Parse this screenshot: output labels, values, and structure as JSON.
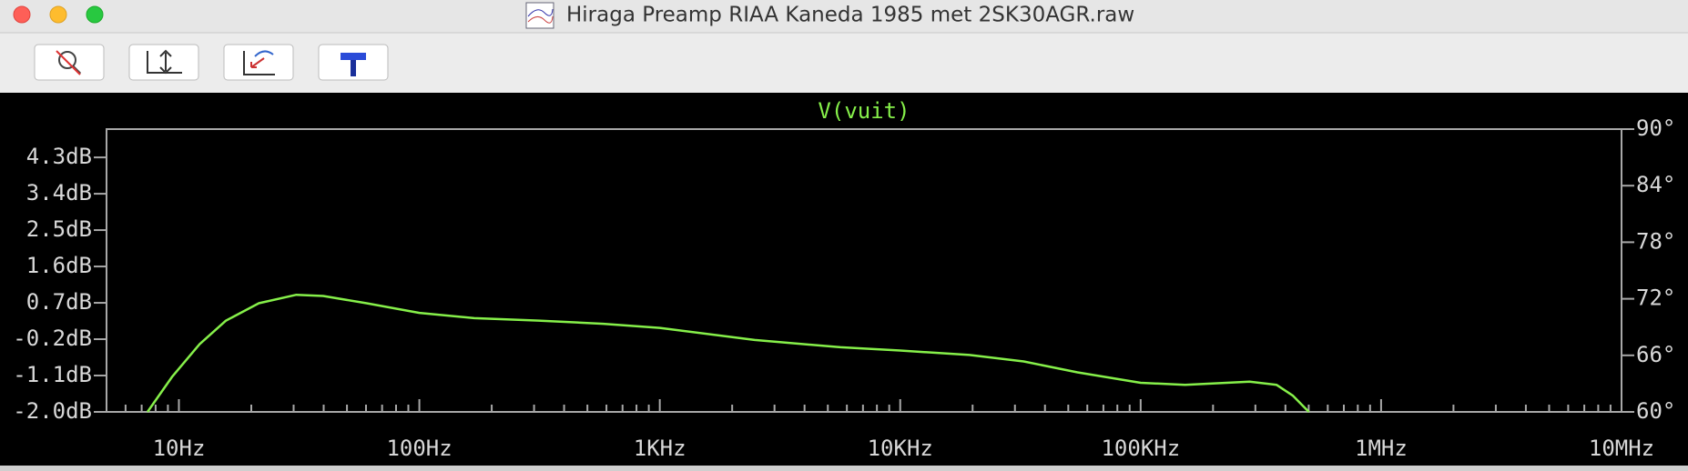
{
  "window": {
    "title": "Hiraga Preamp RIAA Kaneda 1985 met 2SK30AGR.raw"
  },
  "chart_data": {
    "type": "line",
    "x": [
      7.4,
      9.4,
      12.2,
      15.7,
      21.5,
      30.8,
      39.8,
      60.3,
      100,
      169,
      314,
      582,
      1000,
      2480,
      5640,
      10000,
      19400,
      32600,
      54600,
      100000,
      153000,
      284000,
      367000,
      430000,
      501000
    ],
    "series": [
      {
        "name": "V(vuit)",
        "color": "#86f04a",
        "values": [
          -2.0,
          -1.12,
          -0.32,
          0.26,
          0.69,
          0.9,
          0.87,
          0.69,
          0.45,
          0.32,
          0.26,
          0.18,
          0.08,
          -0.22,
          -0.4,
          -0.48,
          -0.59,
          -0.75,
          -1.02,
          -1.28,
          -1.33,
          -1.25,
          -1.33,
          -1.6,
          -2.0
        ]
      }
    ],
    "xscale": "log",
    "xlim": [
      5,
      10000000
    ],
    "xticks": [
      {
        "value": 10,
        "label": "10Hz"
      },
      {
        "value": 100,
        "label": "100Hz"
      },
      {
        "value": 1000,
        "label": "1KHz"
      },
      {
        "value": 10000,
        "label": "10KHz"
      },
      {
        "value": 100000,
        "label": "100KHz"
      },
      {
        "value": 1000000,
        "label": "1MHz"
      },
      {
        "value": 10000000,
        "label": "10MHz"
      }
    ],
    "ylim": [
      -2.0,
      5.0
    ],
    "yticks": [
      {
        "value": 4.3,
        "label": "4.3dB"
      },
      {
        "value": 3.4,
        "label": "3.4dB"
      },
      {
        "value": 2.5,
        "label": "2.5dB"
      },
      {
        "value": 1.6,
        "label": "1.6dB"
      },
      {
        "value": 0.7,
        "label": "0.7dB"
      },
      {
        "value": -0.2,
        "label": "-0.2dB"
      },
      {
        "value": -1.1,
        "label": "-1.1dB"
      },
      {
        "value": -2.0,
        "label": "-2.0dB"
      }
    ],
    "y2lim": [
      60,
      90
    ],
    "y2ticks": [
      {
        "value": 90,
        "label": "90°"
      },
      {
        "value": 84,
        "label": "84°"
      },
      {
        "value": 78,
        "label": "78°"
      },
      {
        "value": 72,
        "label": "72°"
      },
      {
        "value": 66,
        "label": "66°"
      },
      {
        "value": 60,
        "label": "60°"
      }
    ]
  }
}
